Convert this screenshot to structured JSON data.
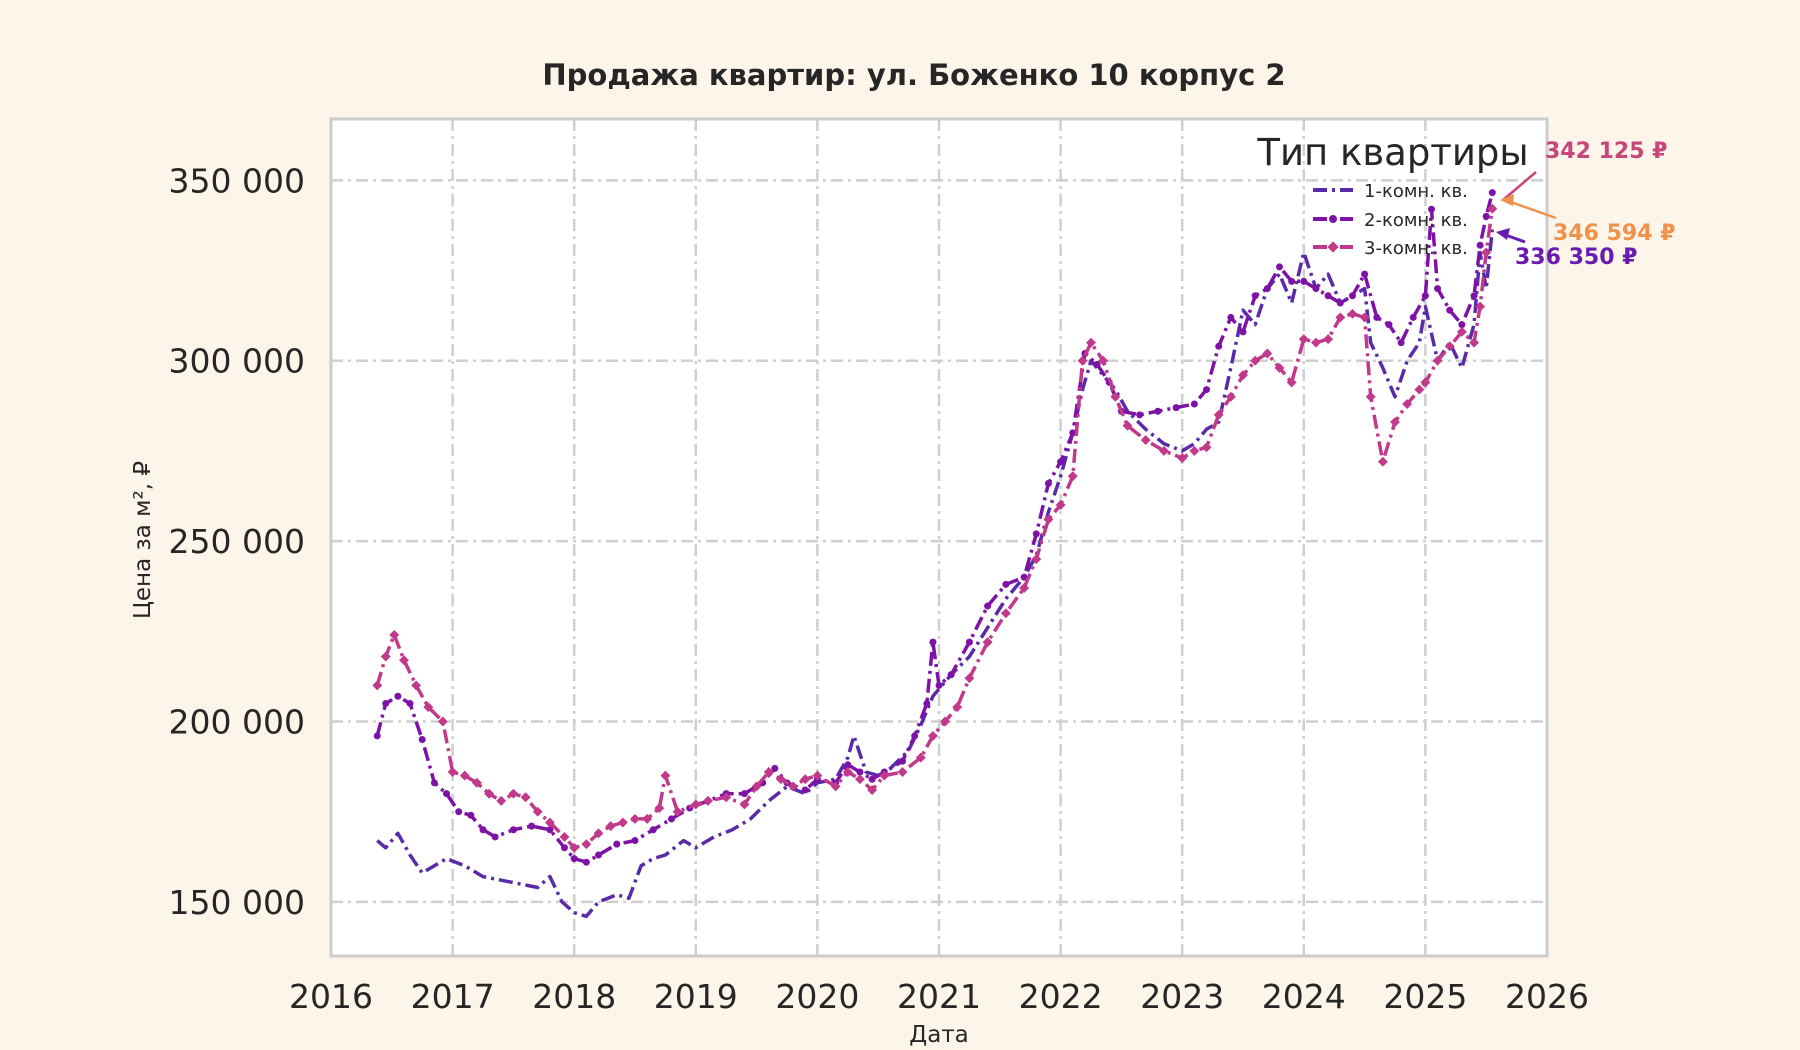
{
  "chart_data": {
    "type": "line",
    "title": "Продажа квартир: ул. Боженко 10 корпус 2",
    "xlabel": "Дата",
    "ylabel": "Цена за м², ₽",
    "xlim": [
      2016.0,
      2026.0
    ],
    "ylim": [
      135000,
      367000
    ],
    "x_ticks": [
      2016,
      2017,
      2018,
      2019,
      2020,
      2021,
      2022,
      2023,
      2024,
      2025,
      2026
    ],
    "x_tick_labels": [
      "2016",
      "2017",
      "2018",
      "2019",
      "2020",
      "2021",
      "2022",
      "2023",
      "2024",
      "2025",
      "2026"
    ],
    "y_ticks": [
      150000,
      200000,
      250000,
      300000,
      350000
    ],
    "y_tick_labels": [
      "150 000",
      "200 000",
      "250 000",
      "300 000",
      "350 000"
    ],
    "grid": true,
    "legend": {
      "title": "Тип квартиры",
      "placement": "top-right"
    },
    "series": [
      {
        "name": "1-комн. кв.",
        "color": "#5a2ba8",
        "style": "dashdot",
        "points": [
          [
            2016.38,
            167000
          ],
          [
            2016.45,
            165000
          ],
          [
            2016.55,
            169000
          ],
          [
            2016.65,
            163000
          ],
          [
            2016.75,
            158000
          ],
          [
            2016.85,
            160000
          ],
          [
            2016.95,
            162000
          ],
          [
            2017.1,
            160000
          ],
          [
            2017.25,
            157000
          ],
          [
            2017.4,
            156000
          ],
          [
            2017.55,
            155000
          ],
          [
            2017.7,
            154000
          ],
          [
            2017.8,
            157000
          ],
          [
            2017.9,
            150000
          ],
          [
            2018.0,
            147000
          ],
          [
            2018.1,
            146000
          ],
          [
            2018.2,
            150000
          ],
          [
            2018.35,
            152000
          ],
          [
            2018.45,
            151000
          ],
          [
            2018.55,
            160000
          ],
          [
            2018.65,
            162000
          ],
          [
            2018.75,
            163000
          ],
          [
            2018.9,
            167000
          ],
          [
            2019.0,
            165000
          ],
          [
            2019.15,
            168000
          ],
          [
            2019.3,
            170000
          ],
          [
            2019.45,
            173000
          ],
          [
            2019.6,
            178000
          ],
          [
            2019.75,
            182000
          ],
          [
            2019.9,
            180000
          ],
          [
            2020.0,
            183000
          ],
          [
            2020.15,
            184000
          ],
          [
            2020.25,
            190000
          ],
          [
            2020.3,
            196000
          ],
          [
            2020.4,
            186000
          ],
          [
            2020.5,
            185000
          ],
          [
            2020.6,
            187000
          ],
          [
            2020.75,
            192000
          ],
          [
            2020.85,
            199000
          ],
          [
            2020.95,
            207000
          ],
          [
            2021.1,
            213000
          ],
          [
            2021.25,
            218000
          ],
          [
            2021.4,
            226000
          ],
          [
            2021.55,
            234000
          ],
          [
            2021.7,
            240000
          ],
          [
            2021.8,
            246000
          ],
          [
            2021.9,
            258000
          ],
          [
            2022.0,
            268000
          ],
          [
            2022.1,
            280000
          ],
          [
            2022.18,
            292000
          ],
          [
            2022.25,
            300000
          ],
          [
            2022.35,
            296000
          ],
          [
            2022.45,
            292000
          ],
          [
            2022.55,
            286000
          ],
          [
            2022.7,
            281000
          ],
          [
            2022.85,
            277000
          ],
          [
            2023.0,
            275000
          ],
          [
            2023.1,
            277000
          ],
          [
            2023.2,
            281000
          ],
          [
            2023.3,
            283000
          ],
          [
            2023.4,
            298000
          ],
          [
            2023.5,
            314000
          ],
          [
            2023.6,
            310000
          ],
          [
            2023.7,
            320000
          ],
          [
            2023.8,
            324000
          ],
          [
            2023.9,
            316000
          ],
          [
            2024.0,
            330000
          ],
          [
            2024.1,
            320000
          ],
          [
            2024.2,
            324000
          ],
          [
            2024.3,
            316000
          ],
          [
            2024.4,
            318000
          ],
          [
            2024.5,
            320000
          ],
          [
            2024.55,
            305000
          ],
          [
            2024.65,
            298000
          ],
          [
            2024.75,
            290000
          ],
          [
            2024.85,
            300000
          ],
          [
            2024.95,
            305000
          ],
          [
            2025.0,
            315000
          ],
          [
            2025.1,
            300000
          ],
          [
            2025.2,
            305000
          ],
          [
            2025.3,
            298000
          ],
          [
            2025.4,
            310000
          ],
          [
            2025.45,
            330000
          ],
          [
            2025.5,
            320000
          ],
          [
            2025.55,
            336350
          ]
        ]
      },
      {
        "name": "2-комн. кв.",
        "color": "#7e12a6",
        "style": "dashdot",
        "marker": "dot",
        "points": [
          [
            2016.38,
            196000
          ],
          [
            2016.45,
            205000
          ],
          [
            2016.55,
            207000
          ],
          [
            2016.65,
            205000
          ],
          [
            2016.75,
            195000
          ],
          [
            2016.85,
            183000
          ],
          [
            2016.95,
            180000
          ],
          [
            2017.05,
            175000
          ],
          [
            2017.15,
            174000
          ],
          [
            2017.25,
            170000
          ],
          [
            2017.35,
            168000
          ],
          [
            2017.5,
            170000
          ],
          [
            2017.65,
            171000
          ],
          [
            2017.8,
            170000
          ],
          [
            2017.92,
            165000
          ],
          [
            2018.0,
            162000
          ],
          [
            2018.1,
            161000
          ],
          [
            2018.2,
            163000
          ],
          [
            2018.35,
            166000
          ],
          [
            2018.5,
            167000
          ],
          [
            2018.65,
            170000
          ],
          [
            2018.8,
            173000
          ],
          [
            2018.95,
            176000
          ],
          [
            2019.1,
            178000
          ],
          [
            2019.25,
            180000
          ],
          [
            2019.4,
            180000
          ],
          [
            2019.55,
            183000
          ],
          [
            2019.65,
            187000
          ],
          [
            2019.75,
            183000
          ],
          [
            2019.9,
            181000
          ],
          [
            2020.0,
            184000
          ],
          [
            2020.15,
            183000
          ],
          [
            2020.25,
            188000
          ],
          [
            2020.35,
            186000
          ],
          [
            2020.45,
            184000
          ],
          [
            2020.55,
            186000
          ],
          [
            2020.7,
            189000
          ],
          [
            2020.8,
            196000
          ],
          [
            2020.9,
            205000
          ],
          [
            2020.95,
            222000
          ],
          [
            2021.0,
            210000
          ],
          [
            2021.1,
            213000
          ],
          [
            2021.25,
            222000
          ],
          [
            2021.4,
            232000
          ],
          [
            2021.55,
            238000
          ],
          [
            2021.7,
            240000
          ],
          [
            2021.8,
            252000
          ],
          [
            2021.9,
            266000
          ],
          [
            2022.0,
            272000
          ],
          [
            2022.1,
            280000
          ],
          [
            2022.2,
            302000
          ],
          [
            2022.3,
            299000
          ],
          [
            2022.4,
            294000
          ],
          [
            2022.5,
            286000
          ],
          [
            2022.65,
            285000
          ],
          [
            2022.8,
            286000
          ],
          [
            2022.95,
            287000
          ],
          [
            2023.1,
            288000
          ],
          [
            2023.2,
            292000
          ],
          [
            2023.3,
            304000
          ],
          [
            2023.4,
            312000
          ],
          [
            2023.5,
            308000
          ],
          [
            2023.6,
            318000
          ],
          [
            2023.7,
            320000
          ],
          [
            2023.8,
            326000
          ],
          [
            2023.9,
            322000
          ],
          [
            2024.0,
            322000
          ],
          [
            2024.1,
            320000
          ],
          [
            2024.2,
            318000
          ],
          [
            2024.3,
            316000
          ],
          [
            2024.4,
            318000
          ],
          [
            2024.5,
            324000
          ],
          [
            2024.6,
            312000
          ],
          [
            2024.7,
            310000
          ],
          [
            2024.8,
            305000
          ],
          [
            2024.9,
            312000
          ],
          [
            2025.0,
            318000
          ],
          [
            2025.05,
            342000
          ],
          [
            2025.1,
            320000
          ],
          [
            2025.2,
            314000
          ],
          [
            2025.3,
            310000
          ],
          [
            2025.4,
            318000
          ],
          [
            2025.45,
            332000
          ],
          [
            2025.5,
            340000
          ],
          [
            2025.55,
            346594
          ]
        ]
      },
      {
        "name": "3-комн. кв.",
        "color": "#c1398a",
        "style": "dashdot",
        "marker": "diamond",
        "points": [
          [
            2016.38,
            210000
          ],
          [
            2016.45,
            218000
          ],
          [
            2016.52,
            224000
          ],
          [
            2016.6,
            217000
          ],
          [
            2016.7,
            210000
          ],
          [
            2016.8,
            204000
          ],
          [
            2016.92,
            200000
          ],
          [
            2017.0,
            186000
          ],
          [
            2017.1,
            185000
          ],
          [
            2017.2,
            183000
          ],
          [
            2017.3,
            180000
          ],
          [
            2017.4,
            178000
          ],
          [
            2017.5,
            180000
          ],
          [
            2017.6,
            179000
          ],
          [
            2017.7,
            175000
          ],
          [
            2017.8,
            172000
          ],
          [
            2017.92,
            168000
          ],
          [
            2018.0,
            165000
          ],
          [
            2018.1,
            166000
          ],
          [
            2018.2,
            169000
          ],
          [
            2018.3,
            171000
          ],
          [
            2018.4,
            172000
          ],
          [
            2018.5,
            173000
          ],
          [
            2018.6,
            173000
          ],
          [
            2018.7,
            176000
          ],
          [
            2018.75,
            185000
          ],
          [
            2018.85,
            175000
          ],
          [
            2019.0,
            177000
          ],
          [
            2019.1,
            178000
          ],
          [
            2019.25,
            179000
          ],
          [
            2019.4,
            177000
          ],
          [
            2019.5,
            182000
          ],
          [
            2019.6,
            186000
          ],
          [
            2019.7,
            184000
          ],
          [
            2019.8,
            182000
          ],
          [
            2019.9,
            184000
          ],
          [
            2020.0,
            185000
          ],
          [
            2020.15,
            182000
          ],
          [
            2020.25,
            186000
          ],
          [
            2020.35,
            184000
          ],
          [
            2020.45,
            181000
          ],
          [
            2020.55,
            185000
          ],
          [
            2020.7,
            186000
          ],
          [
            2020.85,
            190000
          ],
          [
            2020.95,
            196000
          ],
          [
            2021.05,
            200000
          ],
          [
            2021.15,
            204000
          ],
          [
            2021.25,
            212000
          ],
          [
            2021.4,
            222000
          ],
          [
            2021.55,
            230000
          ],
          [
            2021.7,
            237000
          ],
          [
            2021.8,
            245000
          ],
          [
            2021.9,
            256000
          ],
          [
            2022.0,
            260000
          ],
          [
            2022.1,
            268000
          ],
          [
            2022.18,
            300000
          ],
          [
            2022.25,
            305000
          ],
          [
            2022.35,
            300000
          ],
          [
            2022.45,
            290000
          ],
          [
            2022.55,
            282000
          ],
          [
            2022.7,
            278000
          ],
          [
            2022.85,
            275000
          ],
          [
            2023.0,
            273000
          ],
          [
            2023.1,
            275000
          ],
          [
            2023.2,
            276000
          ],
          [
            2023.3,
            285000
          ],
          [
            2023.4,
            290000
          ],
          [
            2023.5,
            296000
          ],
          [
            2023.6,
            300000
          ],
          [
            2023.7,
            302000
          ],
          [
            2023.8,
            298000
          ],
          [
            2023.9,
            294000
          ],
          [
            2024.0,
            306000
          ],
          [
            2024.1,
            305000
          ],
          [
            2024.2,
            306000
          ],
          [
            2024.3,
            312000
          ],
          [
            2024.4,
            313000
          ],
          [
            2024.5,
            312000
          ],
          [
            2024.55,
            290000
          ],
          [
            2024.65,
            272000
          ],
          [
            2024.75,
            283000
          ],
          [
            2024.85,
            288000
          ],
          [
            2024.95,
            292000
          ],
          [
            2025.0,
            294000
          ],
          [
            2025.1,
            300000
          ],
          [
            2025.2,
            304000
          ],
          [
            2025.3,
            308000
          ],
          [
            2025.4,
            305000
          ],
          [
            2025.45,
            315000
          ],
          [
            2025.5,
            330000
          ],
          [
            2025.55,
            342125
          ]
        ]
      }
    ],
    "annotations": [
      {
        "text": "342 125 ₽",
        "color": "#c8457a",
        "target": [
          2025.58,
          344000
        ]
      },
      {
        "text": "346 594 ₽",
        "color": "#f0924a",
        "target": [
          2025.6,
          346000
        ]
      },
      {
        "text": "336 350 ₽",
        "color": "#6a1ab0",
        "target": [
          2025.57,
          337000
        ]
      }
    ]
  }
}
